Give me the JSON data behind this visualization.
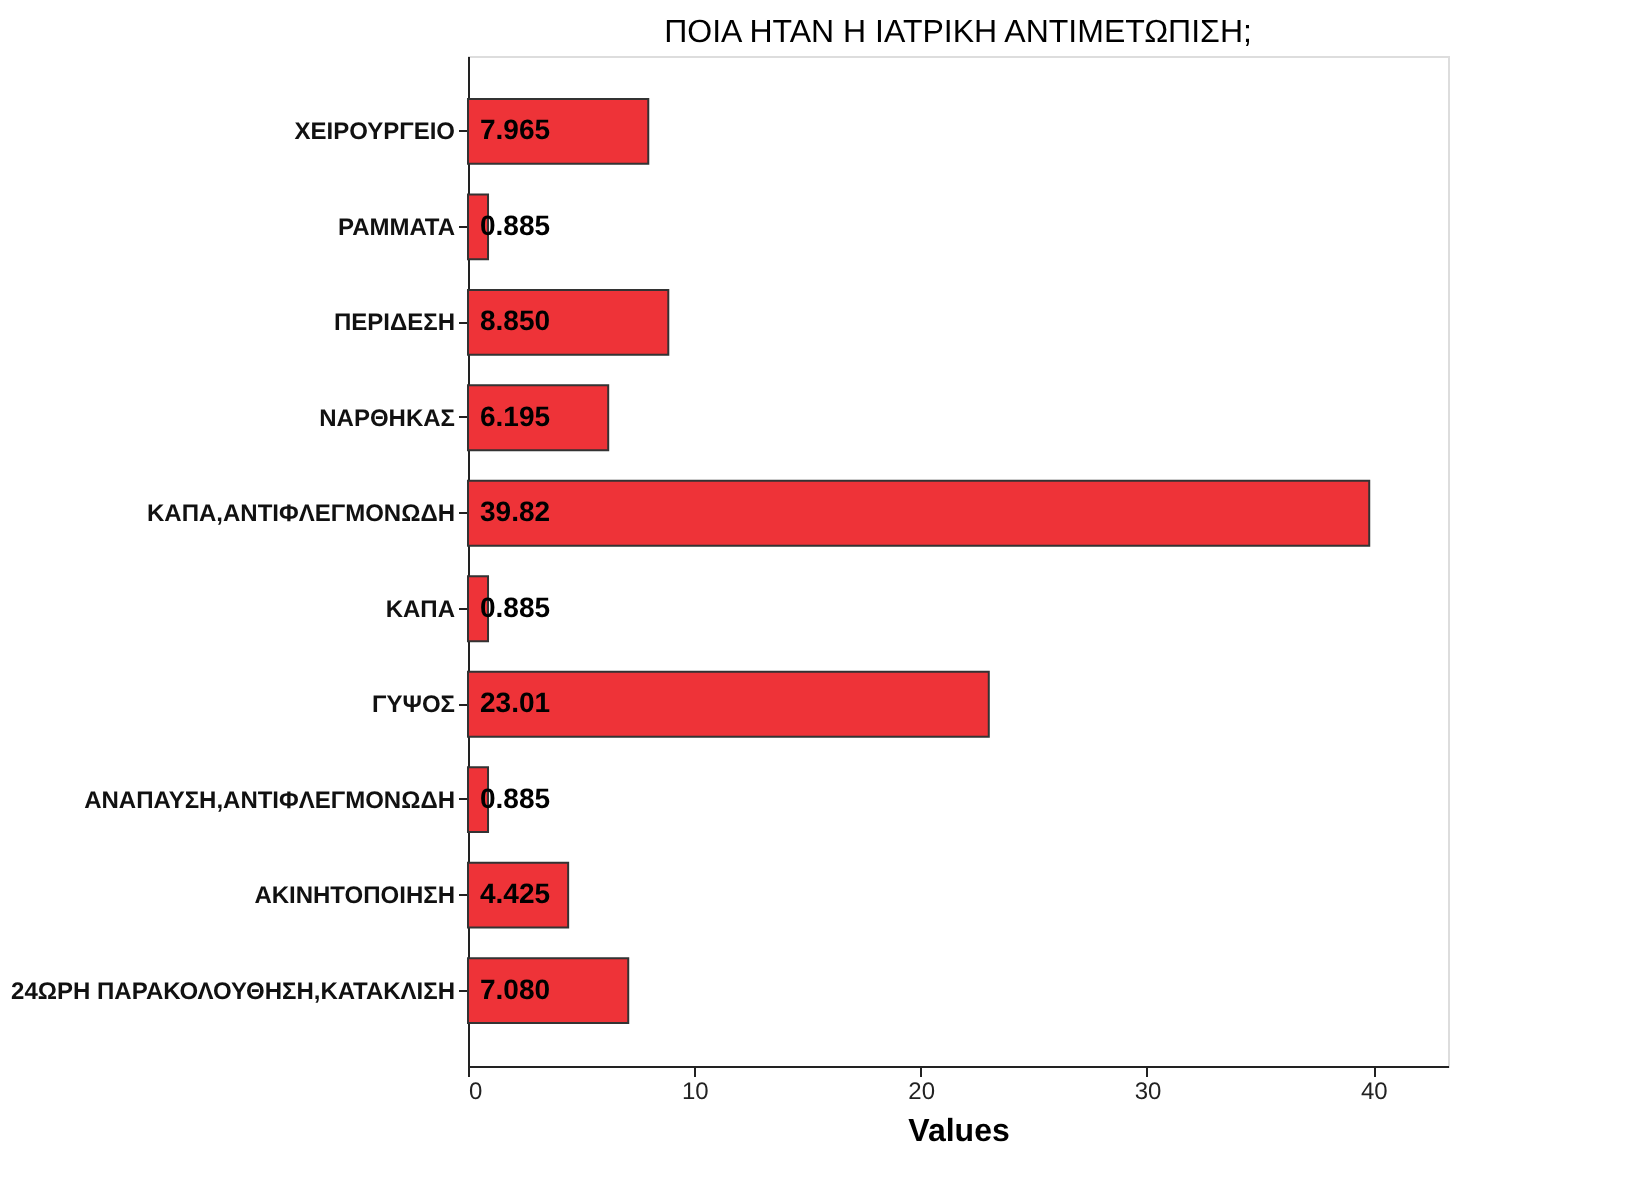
{
  "chart_data": {
    "type": "bar",
    "orientation": "horizontal",
    "title": "ΠΟΙΑ ΗΤΑΝ Η ΙΑΤΡΙΚΗ ΑΝΤΙΜΕΤΩΠΙΣΗ;",
    "xlabel": "Values",
    "categories": [
      "ΧΕΙΡΟΥΡΓΕΙΟ",
      "ΡΑΜΜΑΤΑ",
      "ΠΕΡΙΔΕΣΗ",
      "ΝΑΡΘΗΚΑΣ",
      "ΚΑΠΑ,ΑΝΤΙΦΛΕΓΜΟΝΩΔΗ",
      "ΚΑΠΑ",
      "ΓΥΨΟΣ",
      "ΑΝΑΠΑΥΣΗ,ΑΝΤΙΦΛΕΓΜΟΝΩΔΗ",
      "ΑΚΙΝΗΤΟΠΟΙΗΣΗ",
      "24ΩΡΗ ΠΑΡΑΚΟΛΟΥΘΗΣΗ,ΚΑΤΑΚΛΙΣΗ"
    ],
    "values": [
      7.965,
      0.885,
      8.85,
      6.195,
      39.82,
      0.885,
      23.01,
      0.885,
      4.425,
      7.08
    ],
    "value_labels": [
      "7.965",
      "0.885",
      "8.850",
      "6.195",
      "39.82",
      "0.885",
      "23.01",
      "0.885",
      "4.425",
      "7.080"
    ],
    "color": "#ee3338",
    "xlim": [
      0,
      43.3
    ],
    "xticks": [
      0,
      10,
      20,
      30,
      40
    ],
    "grid": false
  }
}
